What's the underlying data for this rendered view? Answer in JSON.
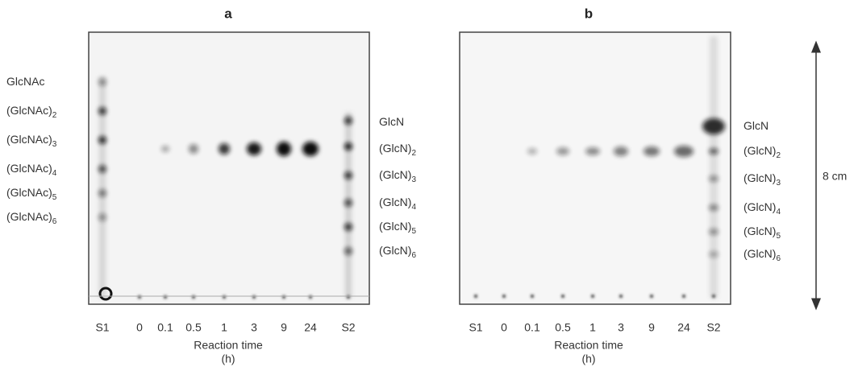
{
  "panels": [
    {
      "label": "a",
      "lanes": [
        "S1",
        "0",
        "0.1",
        "0.5",
        "1",
        "3",
        "9",
        "24",
        "S2"
      ],
      "left_labels": [
        {
          "name": "GlcNAc",
          "sub": ""
        },
        {
          "name": "(GlcNAc)",
          "sub": "2"
        },
        {
          "name": "(GlcNAc)",
          "sub": "3"
        },
        {
          "name": "(GlcNAc)",
          "sub": "4"
        },
        {
          "name": "(GlcNAc)",
          "sub": "5"
        },
        {
          "name": "(GlcNAc)",
          "sub": "6"
        }
      ],
      "right_labels": [
        {
          "name": "GlcN",
          "sub": ""
        },
        {
          "name": "(GlcN)",
          "sub": "2"
        },
        {
          "name": "(GlcN)",
          "sub": "3"
        },
        {
          "name": "(GlcN)",
          "sub": "4"
        },
        {
          "name": "(GlcN)",
          "sub": "5"
        },
        {
          "name": "(GlcN)",
          "sub": "6"
        }
      ],
      "xlabel": "Reaction time",
      "xunit": "(h)"
    },
    {
      "label": "b",
      "lanes": [
        "S1",
        "0",
        "0.1",
        "0.5",
        "1",
        "3",
        "9",
        "24",
        "S2"
      ],
      "left_labels": [],
      "right_labels": [
        {
          "name": "GlcN",
          "sub": ""
        },
        {
          "name": "(GlcN)",
          "sub": "2"
        },
        {
          "name": "(GlcN)",
          "sub": "3"
        },
        {
          "name": "(GlcN)",
          "sub": "4"
        },
        {
          "name": "(GlcN)",
          "sub": "5"
        },
        {
          "name": "(GlcN)",
          "sub": "6"
        }
      ],
      "xlabel": "Reaction time",
      "xunit": "(h)"
    }
  ],
  "scale_label": "8 cm"
}
